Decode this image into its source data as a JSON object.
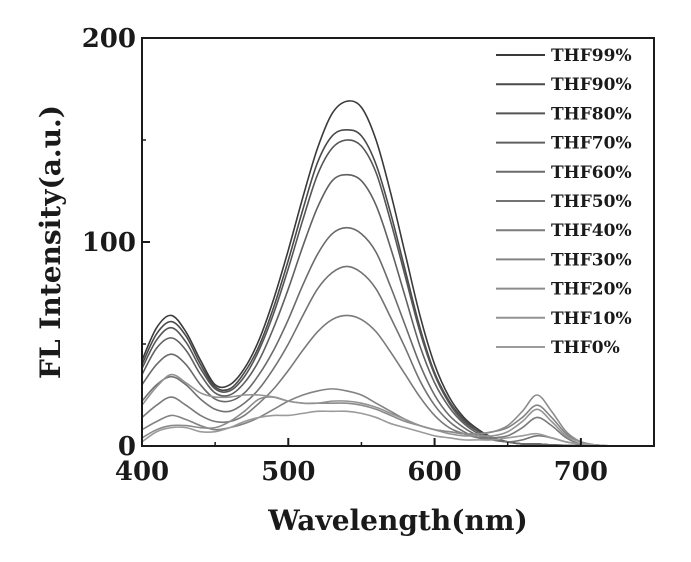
{
  "chart_data": {
    "type": "line",
    "title": "",
    "xlabel": "Wavelength(nm)",
    "ylabel": "FL Intensity(a.u.)",
    "xlim": [
      400,
      750
    ],
    "ylim": [
      0,
      200
    ],
    "xticks": [
      400,
      500,
      600,
      700
    ],
    "yticks": [
      0,
      100,
      200
    ],
    "xtick_labels": [
      "400",
      "500",
      "600",
      "700"
    ],
    "ytick_labels": [
      "0",
      "100",
      "200"
    ],
    "grid": false,
    "legend_position": "top-right",
    "x": [
      400,
      410,
      420,
      430,
      440,
      450,
      460,
      470,
      480,
      490,
      500,
      510,
      520,
      530,
      540,
      550,
      560,
      570,
      580,
      590,
      600,
      610,
      620,
      630,
      640,
      650,
      660,
      670,
      680,
      690,
      700,
      710,
      720,
      730
    ],
    "series": [
      {
        "name": "THF99%",
        "color": "#3a3a3a",
        "values": [
          42,
          58,
          64,
          56,
          42,
          30,
          30,
          38,
          52,
          72,
          96,
          122,
          146,
          163,
          169,
          166,
          150,
          124,
          94,
          64,
          40,
          24,
          14,
          8,
          4,
          2,
          1,
          1,
          0.5,
          0.3,
          0.2,
          0.1,
          0,
          0
        ]
      },
      {
        "name": "THF90%",
        "color": "#4a4a4a",
        "values": [
          40,
          55,
          61,
          54,
          40,
          29,
          28,
          36,
          49,
          68,
          91,
          116,
          139,
          152,
          155,
          152,
          138,
          114,
          86,
          58,
          36,
          22,
          13,
          7,
          4,
          2,
          1,
          1,
          0.5,
          0.3,
          0.2,
          0.1,
          0,
          0
        ]
      },
      {
        "name": "THF80%",
        "color": "#555555",
        "values": [
          38,
          52,
          58,
          51,
          38,
          28,
          27,
          34,
          47,
          65,
          87,
          111,
          133,
          146,
          150,
          147,
          134,
          110,
          83,
          56,
          35,
          21,
          12,
          7,
          4,
          2,
          1,
          1,
          0.5,
          0.3,
          0.2,
          0.1,
          0,
          0
        ]
      },
      {
        "name": "THF70%",
        "color": "#606060",
        "values": [
          35,
          48,
          53,
          47,
          35,
          26,
          25,
          31,
          42,
          58,
          77,
          98,
          117,
          130,
          133,
          130,
          118,
          97,
          73,
          49,
          31,
          19,
          11,
          6,
          3,
          2,
          1,
          1,
          0.5,
          0.3,
          0.2,
          0.1,
          0,
          0
        ]
      },
      {
        "name": "THF60%",
        "color": "#6a6a6a",
        "values": [
          30,
          40,
          45,
          40,
          30,
          23,
          22,
          26,
          35,
          47,
          62,
          79,
          94,
          104,
          107,
          104,
          95,
          78,
          59,
          40,
          25,
          15,
          9,
          5,
          3,
          2,
          1,
          1,
          0.5,
          0.3,
          0.2,
          0.1,
          0,
          0
        ]
      },
      {
        "name": "THF50%",
        "color": "#727272",
        "values": [
          22,
          30,
          34,
          30,
          23,
          18,
          17,
          21,
          28,
          38,
          50,
          64,
          77,
          85,
          88,
          85,
          77,
          63,
          48,
          32,
          20,
          12,
          7,
          4,
          3,
          2,
          3,
          5,
          4,
          2,
          1,
          0.5,
          0,
          0
        ]
      },
      {
        "name": "THF40%",
        "color": "#7a7a7a",
        "values": [
          14,
          20,
          24,
          20,
          15,
          12,
          12,
          15,
          21,
          28,
          37,
          47,
          56,
          62,
          64,
          62,
          56,
          46,
          35,
          24,
          15,
          9,
          6,
          4,
          4,
          5,
          9,
          14,
          10,
          4,
          1,
          0.5,
          0,
          0
        ]
      },
      {
        "name": "THF30%",
        "color": "#838383",
        "values": [
          8,
          12,
          15,
          13,
          10,
          8,
          9,
          11,
          14,
          18,
          22,
          25,
          27,
          28,
          27,
          25,
          21,
          17,
          13,
          10,
          8,
          7,
          6,
          6,
          7,
          9,
          14,
          20,
          14,
          6,
          2,
          0.5,
          0,
          0
        ]
      },
      {
        "name": "THF20%",
        "color": "#8b8b8b",
        "values": [
          4,
          8,
          10,
          10,
          9,
          9,
          12,
          17,
          23,
          24,
          22,
          21,
          21,
          21,
          21,
          20,
          18,
          15,
          12,
          10,
          8,
          7,
          6,
          6,
          7,
          10,
          17,
          25,
          17,
          7,
          2,
          0.5,
          0,
          0
        ]
      },
      {
        "name": "THF10%",
        "color": "#939393",
        "values": [
          20,
          29,
          35,
          31,
          26,
          24,
          24,
          25,
          25,
          24,
          22,
          21,
          21,
          22,
          22,
          21,
          19,
          16,
          13,
          10,
          8,
          6,
          5,
          5,
          5,
          7,
          12,
          18,
          12,
          5,
          2,
          0.5,
          0,
          0
        ]
      },
      {
        "name": "THF0%",
        "color": "#9b9b9b",
        "values": [
          2,
          7,
          9,
          9,
          7,
          7,
          9,
          12,
          14,
          15,
          15,
          16,
          17,
          17,
          17,
          16,
          14,
          11,
          9,
          7,
          5,
          4,
          3,
          3,
          3,
          4,
          5,
          6,
          4,
          2,
          1,
          0.5,
          0,
          0
        ]
      }
    ]
  }
}
